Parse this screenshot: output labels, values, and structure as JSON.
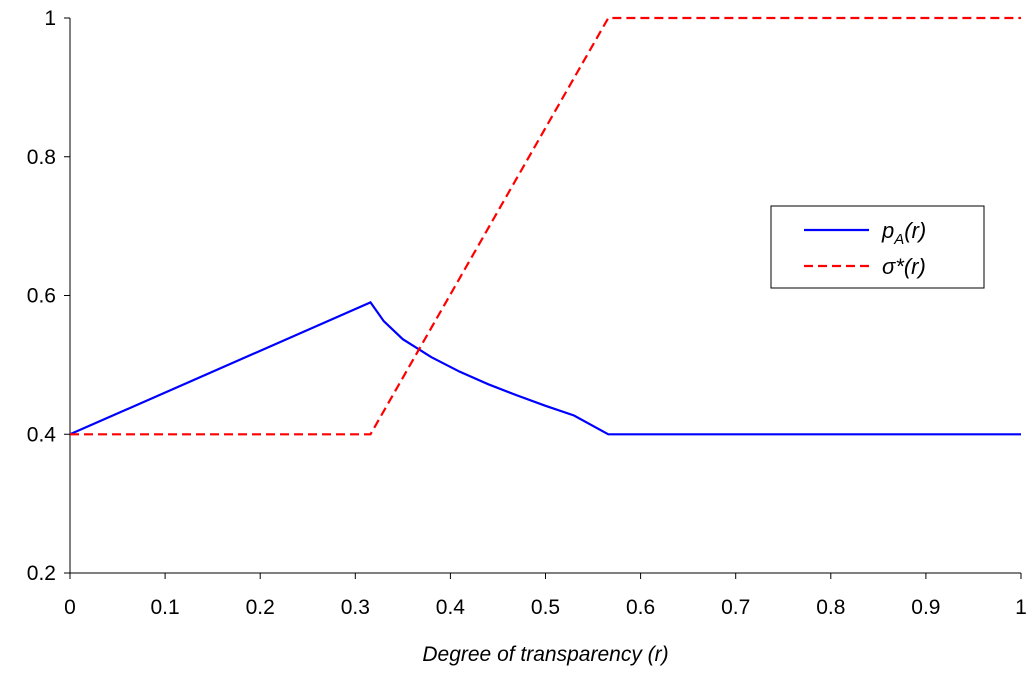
{
  "chart_data": {
    "type": "line",
    "title": "",
    "xlabel": "Degree of transparency (r)",
    "ylabel": "",
    "xlim": [
      0,
      1
    ],
    "ylim": [
      0.2,
      1
    ],
    "x_ticks": [
      "0",
      "0.1",
      "0.2",
      "0.3",
      "0.4",
      "0.5",
      "0.6",
      "0.7",
      "0.8",
      "0.9",
      "1"
    ],
    "y_ticks": [
      "0.2",
      "0.4",
      "0.6",
      "0.8",
      "1"
    ],
    "grid": false,
    "legend_position": "right",
    "series": [
      {
        "name": "p_A(r)",
        "legend_main": "p",
        "legend_sub": "A",
        "legend_rest": "(r)",
        "color": "#0000ff",
        "dash": "solid",
        "x": [
          0,
          0.316,
          0.33,
          0.35,
          0.38,
          0.41,
          0.44,
          0.47,
          0.5,
          0.53,
          0.566,
          1.0
        ],
        "y": [
          0.4,
          0.59,
          0.563,
          0.537,
          0.511,
          0.49,
          0.472,
          0.456,
          0.441,
          0.427,
          0.4,
          0.4
        ]
      },
      {
        "name": "σ*(r)",
        "legend_main": "σ*(r)",
        "legend_sub": "",
        "legend_rest": "",
        "color": "#ff0000",
        "dash": "dashed",
        "x": [
          0,
          0.316,
          0.566,
          1.0
        ],
        "y": [
          0.4,
          0.4,
          1.0,
          1.0
        ]
      }
    ]
  }
}
